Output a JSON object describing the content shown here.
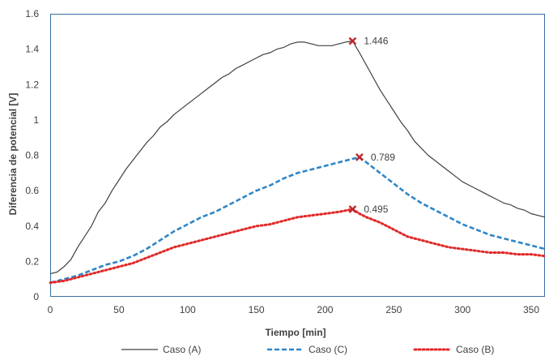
{
  "chart_data": {
    "type": "line",
    "xlabel": "Tiempo [min]",
    "ylabel": "Diferencia de potencial [V]",
    "xlim": [
      0,
      360
    ],
    "ylim": [
      0,
      1.6
    ],
    "xticks": [
      0,
      50,
      100,
      150,
      200,
      250,
      300,
      350
    ],
    "xtick_labels": [
      "0",
      "50",
      "100",
      "150",
      "200",
      "250",
      "300",
      "350"
    ],
    "yticks": [
      0,
      0.2,
      0.4,
      0.6,
      0.8,
      1.0,
      1.2,
      1.4,
      1.6
    ],
    "ytick_labels": [
      "0",
      "0.2",
      "0.4",
      "0.6",
      "0.8",
      "1",
      "1.2",
      "1.4",
      "1.6"
    ],
    "grid": false,
    "legend_position": "bottom",
    "series": [
      {
        "name": "Caso (A)",
        "color": "#404040",
        "style": "solid",
        "x": [
          0,
          5,
          10,
          15,
          20,
          25,
          30,
          35,
          40,
          45,
          50,
          55,
          60,
          65,
          70,
          75,
          80,
          85,
          90,
          95,
          100,
          105,
          110,
          115,
          120,
          125,
          130,
          135,
          140,
          145,
          150,
          155,
          160,
          165,
          170,
          175,
          180,
          185,
          190,
          195,
          200,
          205,
          210,
          215,
          220,
          225,
          230,
          235,
          240,
          245,
          250,
          255,
          260,
          265,
          270,
          275,
          280,
          285,
          290,
          295,
          300,
          305,
          310,
          315,
          320,
          325,
          330,
          335,
          340,
          345,
          350,
          355,
          360
        ],
        "y": [
          0.13,
          0.14,
          0.17,
          0.21,
          0.28,
          0.34,
          0.4,
          0.48,
          0.53,
          0.6,
          0.66,
          0.72,
          0.77,
          0.82,
          0.87,
          0.91,
          0.96,
          0.99,
          1.03,
          1.06,
          1.09,
          1.12,
          1.15,
          1.18,
          1.21,
          1.24,
          1.26,
          1.29,
          1.31,
          1.33,
          1.35,
          1.37,
          1.38,
          1.4,
          1.41,
          1.43,
          1.44,
          1.44,
          1.43,
          1.42,
          1.42,
          1.42,
          1.43,
          1.44,
          1.446,
          1.38,
          1.31,
          1.24,
          1.17,
          1.11,
          1.05,
          0.99,
          0.94,
          0.88,
          0.84,
          0.8,
          0.77,
          0.74,
          0.71,
          0.68,
          0.65,
          0.63,
          0.61,
          0.59,
          0.57,
          0.55,
          0.53,
          0.52,
          0.5,
          0.49,
          0.47,
          0.46,
          0.45
        ]
      },
      {
        "name": "Caso (C)",
        "color": "#2e86c8",
        "style": "dashed",
        "x": [
          0,
          10,
          20,
          30,
          40,
          50,
          60,
          70,
          80,
          90,
          100,
          110,
          120,
          130,
          140,
          150,
          160,
          170,
          180,
          190,
          200,
          210,
          220,
          225,
          230,
          240,
          250,
          260,
          270,
          280,
          290,
          300,
          310,
          320,
          330,
          340,
          350,
          360
        ],
        "y": [
          0.08,
          0.1,
          0.12,
          0.15,
          0.18,
          0.2,
          0.23,
          0.27,
          0.32,
          0.37,
          0.41,
          0.45,
          0.48,
          0.52,
          0.56,
          0.6,
          0.63,
          0.67,
          0.7,
          0.72,
          0.74,
          0.76,
          0.78,
          0.789,
          0.76,
          0.7,
          0.64,
          0.58,
          0.53,
          0.49,
          0.45,
          0.41,
          0.38,
          0.35,
          0.33,
          0.31,
          0.29,
          0.27
        ]
      },
      {
        "name": "Caso (B)",
        "color": "#e02a2a",
        "style": "dotted",
        "x": [
          0,
          10,
          20,
          30,
          40,
          50,
          60,
          70,
          80,
          90,
          100,
          110,
          120,
          130,
          140,
          150,
          160,
          170,
          180,
          190,
          200,
          210,
          220,
          225,
          230,
          240,
          250,
          260,
          270,
          280,
          290,
          300,
          310,
          320,
          330,
          340,
          350,
          360
        ],
        "y": [
          0.08,
          0.09,
          0.11,
          0.13,
          0.15,
          0.17,
          0.19,
          0.22,
          0.25,
          0.28,
          0.3,
          0.32,
          0.34,
          0.36,
          0.38,
          0.4,
          0.41,
          0.43,
          0.45,
          0.46,
          0.47,
          0.48,
          0.495,
          0.47,
          0.45,
          0.42,
          0.38,
          0.34,
          0.32,
          0.3,
          0.28,
          0.27,
          0.26,
          0.25,
          0.25,
          0.24,
          0.24,
          0.23
        ]
      }
    ],
    "annotations": [
      {
        "x": 220,
        "y": 1.446,
        "label": "1.446",
        "color": "#c0282d"
      },
      {
        "x": 225,
        "y": 0.789,
        "label": "0.789",
        "color": "#c0282d"
      },
      {
        "x": 220,
        "y": 0.495,
        "label": "0.495",
        "color": "#c0282d"
      }
    ]
  }
}
